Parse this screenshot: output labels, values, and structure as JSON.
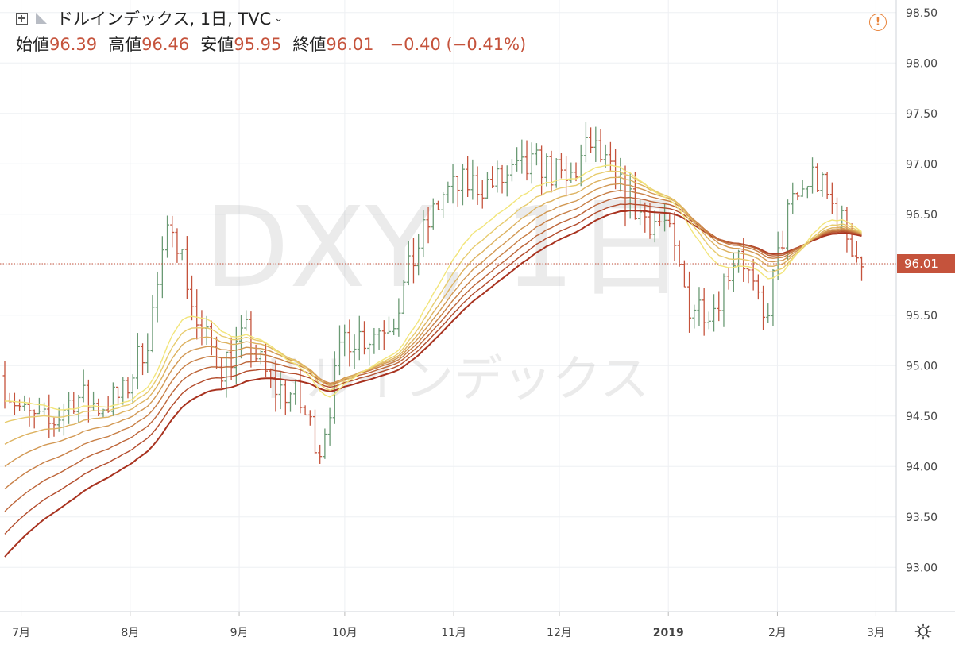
{
  "header": {
    "title": "ドルインデックス, 1日, TVC",
    "open_label": "始値",
    "open": "96.39",
    "high_label": "高値",
    "high": "96.46",
    "low_label": "安値",
    "low": "95.95",
    "close_label": "終値",
    "close": "96.01",
    "change": "−0.40 (−0.41%)"
  },
  "watermark": {
    "symbol": "DXY, 1日",
    "name": "ドルインデックス"
  },
  "colors": {
    "up": "#6a9a74",
    "down": "#c5533c",
    "ribbon_fast": "#f2e57a",
    "ribbon_slow": "#a8321f",
    "price_line": "#c5533c"
  },
  "icons": [
    "expand-icon",
    "flag-icon",
    "alert-icon",
    "settings-gear-icon"
  ],
  "chart_data": {
    "type": "ohlc",
    "x_tick_labels": [
      "7月",
      "8月",
      "9月",
      "10月",
      "11月",
      "12月",
      "2019",
      "2月",
      "3月"
    ],
    "y_ticks": [
      "98.50",
      "98.00",
      "97.50",
      "97.00",
      "96.50",
      "96.00",
      "95.50",
      "95.00",
      "94.50",
      "94.00",
      "93.50",
      "93.00"
    ],
    "ylim": [
      92.6,
      98.6
    ],
    "last_price_label": "96.01",
    "last_price": 96.01,
    "price_points": [
      [
        "2018-06-25",
        94.9
      ],
      [
        "2018-07-02",
        94.5
      ],
      [
        "2018-07-09",
        94.4
      ],
      [
        "2018-07-16",
        94.7
      ],
      [
        "2018-07-23",
        94.6
      ],
      [
        "2018-07-30",
        94.7
      ],
      [
        "2018-08-06",
        95.3
      ],
      [
        "2018-08-13",
        96.5
      ],
      [
        "2018-08-20",
        95.4
      ],
      [
        "2018-08-27",
        95.0
      ],
      [
        "2018-09-03",
        95.3
      ],
      [
        "2018-09-10",
        94.8
      ],
      [
        "2018-09-17",
        94.7
      ],
      [
        "2018-09-24",
        94.2
      ],
      [
        "2018-10-01",
        95.3
      ],
      [
        "2018-10-08",
        95.3
      ],
      [
        "2018-10-15",
        95.5
      ],
      [
        "2018-10-22",
        96.2
      ],
      [
        "2018-10-29",
        96.7
      ],
      [
        "2018-11-05",
        96.8
      ],
      [
        "2018-11-12",
        96.8
      ],
      [
        "2018-11-19",
        96.9
      ],
      [
        "2018-11-26",
        97.0
      ],
      [
        "2018-12-03",
        96.8
      ],
      [
        "2018-12-10",
        97.2
      ],
      [
        "2018-12-17",
        96.8
      ],
      [
        "2018-12-24",
        96.5
      ],
      [
        "2018-12-31",
        96.4
      ],
      [
        "2019-01-07",
        95.6
      ],
      [
        "2019-01-14",
        95.6
      ],
      [
        "2019-01-21",
        96.2
      ],
      [
        "2019-01-28",
        95.4
      ],
      [
        "2019-02-04",
        96.5
      ],
      [
        "2019-02-11",
        96.9
      ],
      [
        "2019-02-18",
        96.5
      ],
      [
        "2019-02-25",
        96.01
      ]
    ],
    "ribbon_ma_lengths": [
      20,
      25,
      30,
      35,
      40,
      45,
      50,
      55
    ]
  }
}
